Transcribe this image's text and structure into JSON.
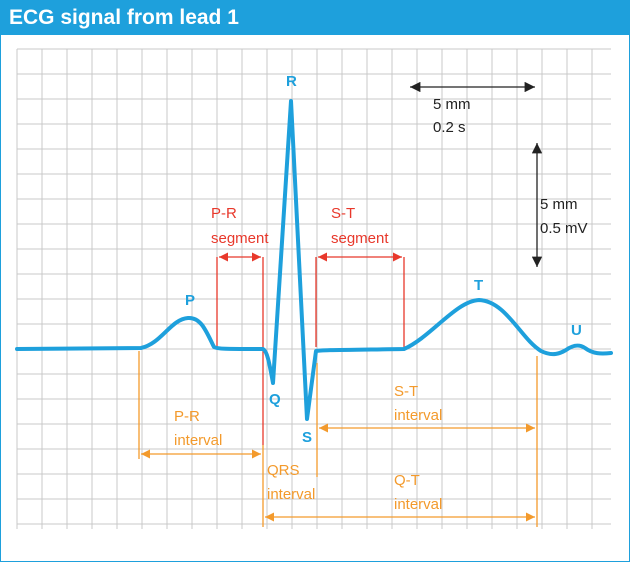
{
  "title": "ECG signal from lead 1",
  "colors": {
    "title_bg": "#1ea0dc",
    "signal": "#1ea0dc",
    "grid": "#c8c8c8",
    "segment": "#e8382b",
    "interval": "#f39a2c",
    "scale": "#222222"
  },
  "waves": {
    "p": "P",
    "q": "Q",
    "r": "R",
    "s": "S",
    "t": "T",
    "u": "U"
  },
  "segments": {
    "pr": {
      "line1": "P-R",
      "line2": "segment"
    },
    "st": {
      "line1": "S-T",
      "line2": "segment"
    }
  },
  "intervals": {
    "pr": {
      "line1": "P-R",
      "line2": "interval"
    },
    "qrs": {
      "line1": "QRS",
      "line2": "interval"
    },
    "st": {
      "line1": "S-T",
      "line2": "interval"
    },
    "qt": {
      "line1": "Q-T",
      "line2": "interval"
    }
  },
  "scale": {
    "horizontal": {
      "line1": "5 mm",
      "line2": "0.2 s"
    },
    "vertical": {
      "line1": "5 mm",
      "line2": "0.5 mV"
    }
  }
}
